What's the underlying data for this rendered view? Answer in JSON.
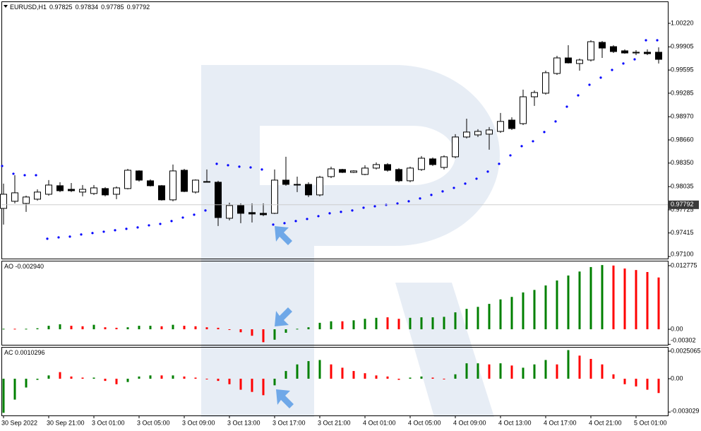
{
  "chart_data": [
    {
      "type": "candlestick",
      "title": "EURUSD,H1",
      "quote": [
        0.97825,
        0.97834,
        0.97785,
        0.97792
      ],
      "up_color": "#ffffff",
      "down_color": "#000000",
      "sar_color": "#0000ff",
      "ylim": [
        0.97072,
        1.00513
      ],
      "yticks": [
        {
          "value": 1.0022,
          "label": "1.00220"
        },
        0.99905,
        0.99595,
        0.99285,
        {
          "value": 0.9897,
          "label": "0.98970"
        },
        {
          "value": 0.9866,
          "label": "0.98660"
        },
        {
          "value": 0.9835,
          "label": "0.98350"
        },
        0.98035,
        0.97725,
        0.97415,
        {
          "value": 0.971,
          "label": "0.97100"
        }
      ],
      "ohlc": [
        [
          0.97744,
          0.98075,
          0.97527,
          0.97933
        ],
        [
          0.97839,
          0.98188,
          0.9781,
          0.97952
        ],
        [
          0.9781,
          0.97914,
          0.97697,
          0.97896
        ],
        [
          0.97867,
          0.97999,
          0.97848,
          0.97962
        ],
        [
          0.97933,
          0.98122,
          0.97914,
          0.98056
        ],
        [
          0.98047,
          0.98094,
          0.97962,
          0.9798
        ],
        [
          0.97999,
          0.98084,
          0.97962,
          0.9798
        ],
        [
          0.97962,
          0.98056,
          0.97905,
          0.97999
        ],
        [
          0.97943,
          0.98056,
          0.97924,
          0.98018
        ],
        [
          0.98009,
          0.98028,
          0.97905,
          0.97924
        ],
        [
          0.97933,
          0.98037,
          0.97867,
          0.98018
        ],
        [
          0.98009,
          0.98273,
          0.97999,
          0.98254
        ],
        [
          0.98245,
          0.98254,
          0.98103,
          0.98122
        ],
        [
          0.98113,
          0.98132,
          0.98037,
          0.98047
        ],
        [
          0.98047,
          0.98056,
          0.97848,
          0.97858
        ],
        [
          0.97858,
          0.9833,
          0.97839,
          0.98245
        ],
        [
          0.98254,
          0.98273,
          0.97962,
          0.97971
        ],
        [
          0.97962,
          0.98132,
          0.97943,
          0.98122
        ],
        [
          0.98094,
          0.98264,
          0.98094,
          0.98103
        ],
        [
          0.98094,
          0.98113,
          0.97508,
          0.97621
        ],
        [
          0.97612,
          0.9782,
          0.97584,
          0.97782
        ],
        [
          0.97782,
          0.9781,
          0.97546,
          0.97678
        ],
        [
          0.97688,
          0.9781,
          0.97555,
          0.97669
        ],
        [
          0.97678,
          0.9781,
          0.9764,
          0.97659
        ],
        [
          0.97678,
          0.98264,
          0.97669,
          0.98122
        ],
        [
          0.98122,
          0.98434,
          0.98047,
          0.98065
        ],
        [
          0.98056,
          0.98169,
          0.97962,
          0.98065
        ],
        [
          0.98065,
          0.98094,
          0.97896,
          0.97924
        ],
        [
          0.97924,
          0.98179,
          0.97905,
          0.9816
        ],
        [
          0.98169,
          0.98302,
          0.9815,
          0.98273
        ],
        [
          0.98264,
          0.98273,
          0.98217,
          0.98226
        ],
        [
          0.98226,
          0.98254,
          0.98217,
          0.98245
        ],
        [
          0.98198,
          0.98321,
          0.98188,
          0.98283
        ],
        [
          0.98283,
          0.98359,
          0.98264,
          0.9833
        ],
        [
          0.9833,
          0.98349,
          0.98236,
          0.98254
        ],
        [
          0.98264,
          0.98283,
          0.98094,
          0.98113
        ],
        [
          0.98113,
          0.98302,
          0.98094,
          0.98283
        ],
        [
          0.98264,
          0.98444,
          0.98245,
          0.98415
        ],
        [
          0.98406,
          0.98425,
          0.98311,
          0.9833
        ],
        [
          0.98292,
          0.98453,
          0.98264,
          0.98434
        ],
        [
          0.98434,
          0.98737,
          0.98415,
          0.98699
        ],
        [
          0.98699,
          0.98944,
          0.9868,
          0.98765
        ],
        [
          0.98727,
          0.98803,
          0.98699,
          0.98774
        ],
        [
          0.98737,
          0.98831,
          0.98529,
          0.98793
        ],
        [
          0.98774,
          0.9902,
          0.98755,
          0.98907
        ],
        [
          0.98925,
          0.98963,
          0.98793,
          0.98812
        ],
        [
          0.98878,
          0.99332,
          0.98859,
          0.99237
        ],
        [
          0.99237,
          0.99322,
          0.99115,
          0.99294
        ],
        [
          0.99285,
          0.99587,
          0.99266,
          0.99559
        ],
        [
          0.99549,
          0.99785,
          0.9953,
          0.99757
        ],
        [
          0.99757,
          0.99927,
          0.99682,
          0.99691
        ],
        [
          0.99682,
          0.99748,
          0.99587,
          0.99729
        ],
        [
          0.99729,
          0.99993,
          0.9971,
          0.99974
        ],
        [
          0.99965,
          0.99984,
          0.99757,
          0.99889
        ],
        [
          0.99908,
          0.99927,
          0.99823,
          0.99842
        ],
        [
          0.99852,
          0.99871,
          0.99814,
          0.99823
        ],
        [
          0.99823,
          0.99861,
          0.99795,
          0.99833
        ],
        [
          0.99833,
          0.99871,
          0.99795,
          0.99814
        ],
        [
          0.99833,
          0.99899,
          0.99682,
          0.99738
        ]
      ],
      "sar": [
        0.98311,
        0.98207,
        0.98188,
        0.98188,
        0.97338,
        0.97356,
        0.97366,
        0.97395,
        0.97414,
        0.97432,
        0.97451,
        0.9747,
        0.97489,
        0.97517,
        0.97536,
        0.97574,
        0.97621,
        0.97659,
        0.97716,
        0.9834,
        0.98321,
        0.98302,
        0.98292,
        0.98264,
        0.97527,
        0.97546,
        0.97574,
        0.97602,
        0.9764,
        0.97678,
        0.97697,
        0.97716,
        0.97753,
        0.97772,
        0.97791,
        0.9781,
        0.97839,
        0.97877,
        0.97924,
        0.97971,
        0.98018,
        0.98075,
        0.98141,
        0.98236,
        0.9834,
        0.98453,
        0.98576,
        0.98642,
        0.98765,
        0.98907,
        0.99105,
        0.99256,
        0.99398,
        0.99493,
        0.99596,
        0.99682,
        0.99738,
        0.99993,
        0.99993
      ]
    },
    {
      "type": "bar",
      "title": "AO -0.002940",
      "ylim": [
        -0.00312,
        0.01377
      ],
      "yticks": [
        0.012775,
        {
          "value": 0,
          "label": "0.00"
        },
        -0.00302
      ],
      "values": [
        0.0001,
        0.0001,
        0.0001,
        0.0002,
        0.0007,
        0.001,
        0.0007,
        0.0006,
        0.0009,
        0.0004,
        0.0003,
        0.0004,
        0.0007,
        0.0007,
        0.0006,
        0.0009,
        0.0007,
        0.0006,
        0.0004,
        0.0003,
        -0.0001,
        -0.0006,
        -0.0013,
        -0.0026,
        -0.0021,
        -0.0007,
        0.0001,
        0.0004,
        0.0013,
        0.0016,
        0.0016,
        0.0018,
        0.0021,
        0.0023,
        0.0024,
        0.0021,
        0.0023,
        0.0024,
        0.0024,
        0.0025,
        0.0034,
        0.0041,
        0.0045,
        0.0051,
        0.006,
        0.0065,
        0.0074,
        0.0079,
        0.0088,
        0.0098,
        0.0108,
        0.0116,
        0.0125,
        0.0129,
        0.0128,
        0.0122,
        0.0119,
        0.0115,
        0.0104
      ],
      "colors": [
        "green",
        "red",
        "green",
        "green",
        "green",
        "green",
        "red",
        "red",
        "green",
        "red",
        "red",
        "green",
        "green",
        "green",
        "red",
        "green",
        "red",
        "red",
        "red",
        "red",
        "red",
        "red",
        "red",
        "red",
        "green",
        "green",
        "green",
        "green",
        "green",
        "green",
        "red",
        "green",
        "green",
        "green",
        "red",
        "red",
        "green",
        "green",
        "green",
        "green",
        "green",
        "green",
        "green",
        "green",
        "green",
        "green",
        "green",
        "green",
        "green",
        "green",
        "green",
        "green",
        "green",
        "green",
        "red",
        "red",
        "red",
        "red",
        "red"
      ]
    },
    {
      "type": "bar",
      "title": "AC 0.0010296",
      "ylim": [
        -0.00334,
        0.00289
      ],
      "yticks": [
        0.0025065,
        {
          "value": 0,
          "label": "0.00"
        },
        -0.003029
      ],
      "values": [
        -0.0031,
        -0.0019,
        -0.0008,
        -0.0001,
        0.0003,
        0.0006,
        0.0002,
        0.0001,
        0.0001,
        -0.0002,
        -0.0005,
        -0.0003,
        0.0002,
        0.0003,
        0.0003,
        0.0003,
        0.0002,
        0.0001,
        0,
        -0.0002,
        -0.0005,
        -0.001,
        -0.0012,
        -0.0015,
        -0.0006,
        0.0007,
        0.0013,
        0.0016,
        0.0017,
        0.0013,
        0.001,
        0.0007,
        0.0005,
        0.0003,
        0.0002,
        -0.0001,
        0.0001,
        0.0002,
        0.0001,
        0,
        0.0004,
        0.0014,
        0.0014,
        0.0013,
        0.0014,
        0.0012,
        0.001,
        0.0013,
        0.0017,
        0.0013,
        0.0026,
        0.0021,
        0.0018,
        0.0013,
        0.0004,
        -0.0005,
        -0.0007,
        -0.001,
        -0.0013
      ],
      "colors": [
        "green",
        "green",
        "green",
        "green",
        "green",
        "red",
        "red",
        "red",
        "green",
        "red",
        "red",
        "green",
        "green",
        "green",
        "red",
        "green",
        "red",
        "red",
        "red",
        "red",
        "red",
        "red",
        "red",
        "red",
        "green",
        "green",
        "green",
        "green",
        "green",
        "red",
        "red",
        "red",
        "red",
        "red",
        "red",
        "red",
        "green",
        "green",
        "red",
        "red",
        "green",
        "green",
        "green",
        "red",
        "green",
        "red",
        "green",
        "green",
        "green",
        "red",
        "green",
        "red",
        "red",
        "red",
        "red",
        "red",
        "red",
        "red",
        "red"
      ],
      "categories": [
        "30 Sep 2022",
        null,
        null,
        null,
        "30 Sep 21:00",
        null,
        null,
        null,
        "3 Oct 01:00",
        null,
        null,
        null,
        "3 Oct 05:00",
        null,
        null,
        null,
        "3 Oct 09:00",
        null,
        null,
        null,
        "3 Oct 13:00",
        null,
        null,
        null,
        "3 Oct 17:00",
        null,
        null,
        null,
        "3 Oct 21:00",
        null,
        null,
        null,
        "4 Oct 01:00",
        null,
        null,
        null,
        "4 Oct 05:00",
        null,
        null,
        null,
        "4 Oct 09:00",
        null,
        null,
        null,
        "4 Oct 13:00",
        null,
        null,
        null,
        "4 Oct 17:00",
        null,
        null,
        null,
        "4 Oct 21:00",
        null,
        null,
        null,
        "5 Oct 01:00",
        null,
        null
      ]
    }
  ]
}
